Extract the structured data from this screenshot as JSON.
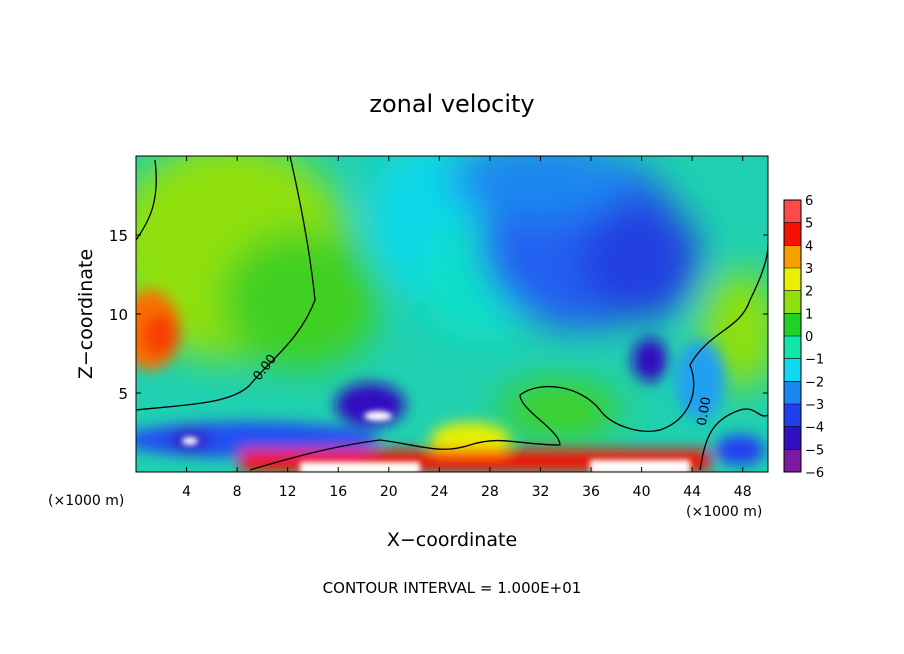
{
  "chart_data": {
    "type": "heatmap",
    "title": "zonal velocity",
    "xlabel": "X−coordinate",
    "ylabel": "Z−coordinate",
    "x_unit_left": "(×1000 m)",
    "x_unit_right": "(×1000 m)",
    "footer": "CONTOUR INTERVAL = 1.000E+01",
    "xlim": [
      0,
      50
    ],
    "ylim": [
      0,
      20
    ],
    "x_ticks": [
      4,
      8,
      12,
      16,
      20,
      24,
      28,
      32,
      36,
      40,
      44,
      48
    ],
    "x_tick_labels": [
      "4",
      "8",
      "12",
      "16",
      "20",
      "24",
      "28",
      "32",
      "36",
      "40",
      "44",
      "48"
    ],
    "y_ticks": [
      5,
      10,
      15
    ],
    "y_tick_labels": [
      "5",
      "10",
      "15"
    ],
    "colorbar": {
      "levels": [
        -6,
        -5,
        -4,
        -3,
        -2,
        -1,
        0,
        1,
        2,
        3,
        4,
        5,
        6
      ],
      "labels": [
        "−6",
        "−5",
        "−4",
        "−3",
        "−2",
        "−1",
        "0",
        "1",
        "2",
        "3",
        "4",
        "5",
        "6"
      ],
      "colors": [
        "#7a1a9e",
        "#3010c0",
        "#2040f0",
        "#1a86f0",
        "#10d8f0",
        "#10e6a8",
        "#22d02a",
        "#8ee010",
        "#e8f000",
        "#f8a000",
        "#f81000",
        "#ff4a4a",
        "#f4a0a0"
      ]
    },
    "contour_label": "0.00",
    "contour_labels": [
      "0.00",
      "0.00"
    ]
  }
}
